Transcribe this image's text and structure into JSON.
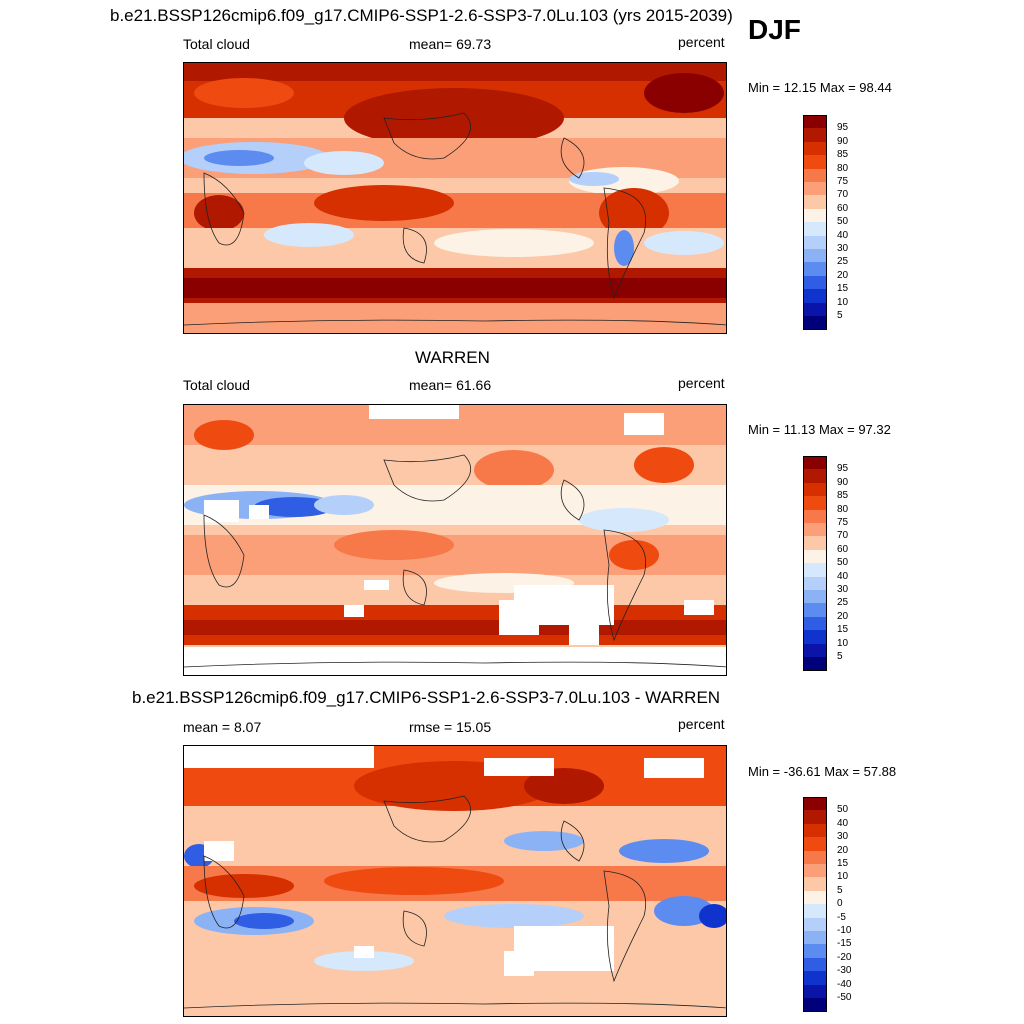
{
  "season": "DJF",
  "panels": [
    {
      "title": "b.e21.BSSP126cmip6.f09_g17.CMIP6-SSP1-2.6-SSP3-7.0Lu.103 (yrs 2015-2039)",
      "left_label": "Total cloud",
      "center_label": "mean=  69.73",
      "right_label": "percent",
      "minmax": "Min =  12.15 Max =  98.44",
      "levels": [
        "95",
        "90",
        "85",
        "80",
        "75",
        "70",
        "60",
        "50",
        "40",
        "30",
        "25",
        "20",
        "15",
        "10",
        "5"
      ],
      "colors": [
        "#8a0000",
        "#b01800",
        "#d63000",
        "#ef4a10",
        "#f77848",
        "#fa9f78",
        "#fcc8a8",
        "#fdf2e6",
        "#d6e8fb",
        "#b4cffa",
        "#8cb2f6",
        "#5d8cf0",
        "#2f5ee4",
        "#0f33cc",
        "#0a14a8",
        "#00007a"
      ]
    },
    {
      "title": "WARREN",
      "left_label": "Total cloud",
      "center_label": "mean=  61.66",
      "right_label": "percent",
      "minmax": "Min =  11.13 Max =  97.32",
      "levels": [
        "95",
        "90",
        "85",
        "80",
        "75",
        "70",
        "60",
        "50",
        "40",
        "30",
        "25",
        "20",
        "15",
        "10",
        "5"
      ],
      "colors": [
        "#8a0000",
        "#b01800",
        "#d63000",
        "#ef4a10",
        "#f77848",
        "#fa9f78",
        "#fcc8a8",
        "#fdf2e6",
        "#d6e8fb",
        "#b4cffa",
        "#8cb2f6",
        "#5d8cf0",
        "#2f5ee4",
        "#0f33cc",
        "#0a14a8",
        "#00007a"
      ]
    },
    {
      "title": "b.e21.BSSP126cmip6.f09_g17.CMIP6-SSP1-2.6-SSP3-7.0Lu.103 - WARREN",
      "left_label": "mean =   8.07",
      "center_label": "rmse =  15.05",
      "right_label": "percent",
      "minmax": "Min = -36.61 Max =  57.88",
      "levels": [
        "50",
        "40",
        "30",
        "20",
        "15",
        "10",
        "5",
        "0",
        "-5",
        "-10",
        "-15",
        "-20",
        "-30",
        "-40",
        "-50"
      ],
      "colors": [
        "#8a0000",
        "#b01800",
        "#d63000",
        "#ef4a10",
        "#f77848",
        "#fa9f78",
        "#fcc8a8",
        "#fdf2e6",
        "#d6e8fb",
        "#b4cffa",
        "#8cb2f6",
        "#5d8cf0",
        "#2f5ee4",
        "#0f33cc",
        "#0a14a8",
        "#00007a"
      ]
    }
  ]
}
